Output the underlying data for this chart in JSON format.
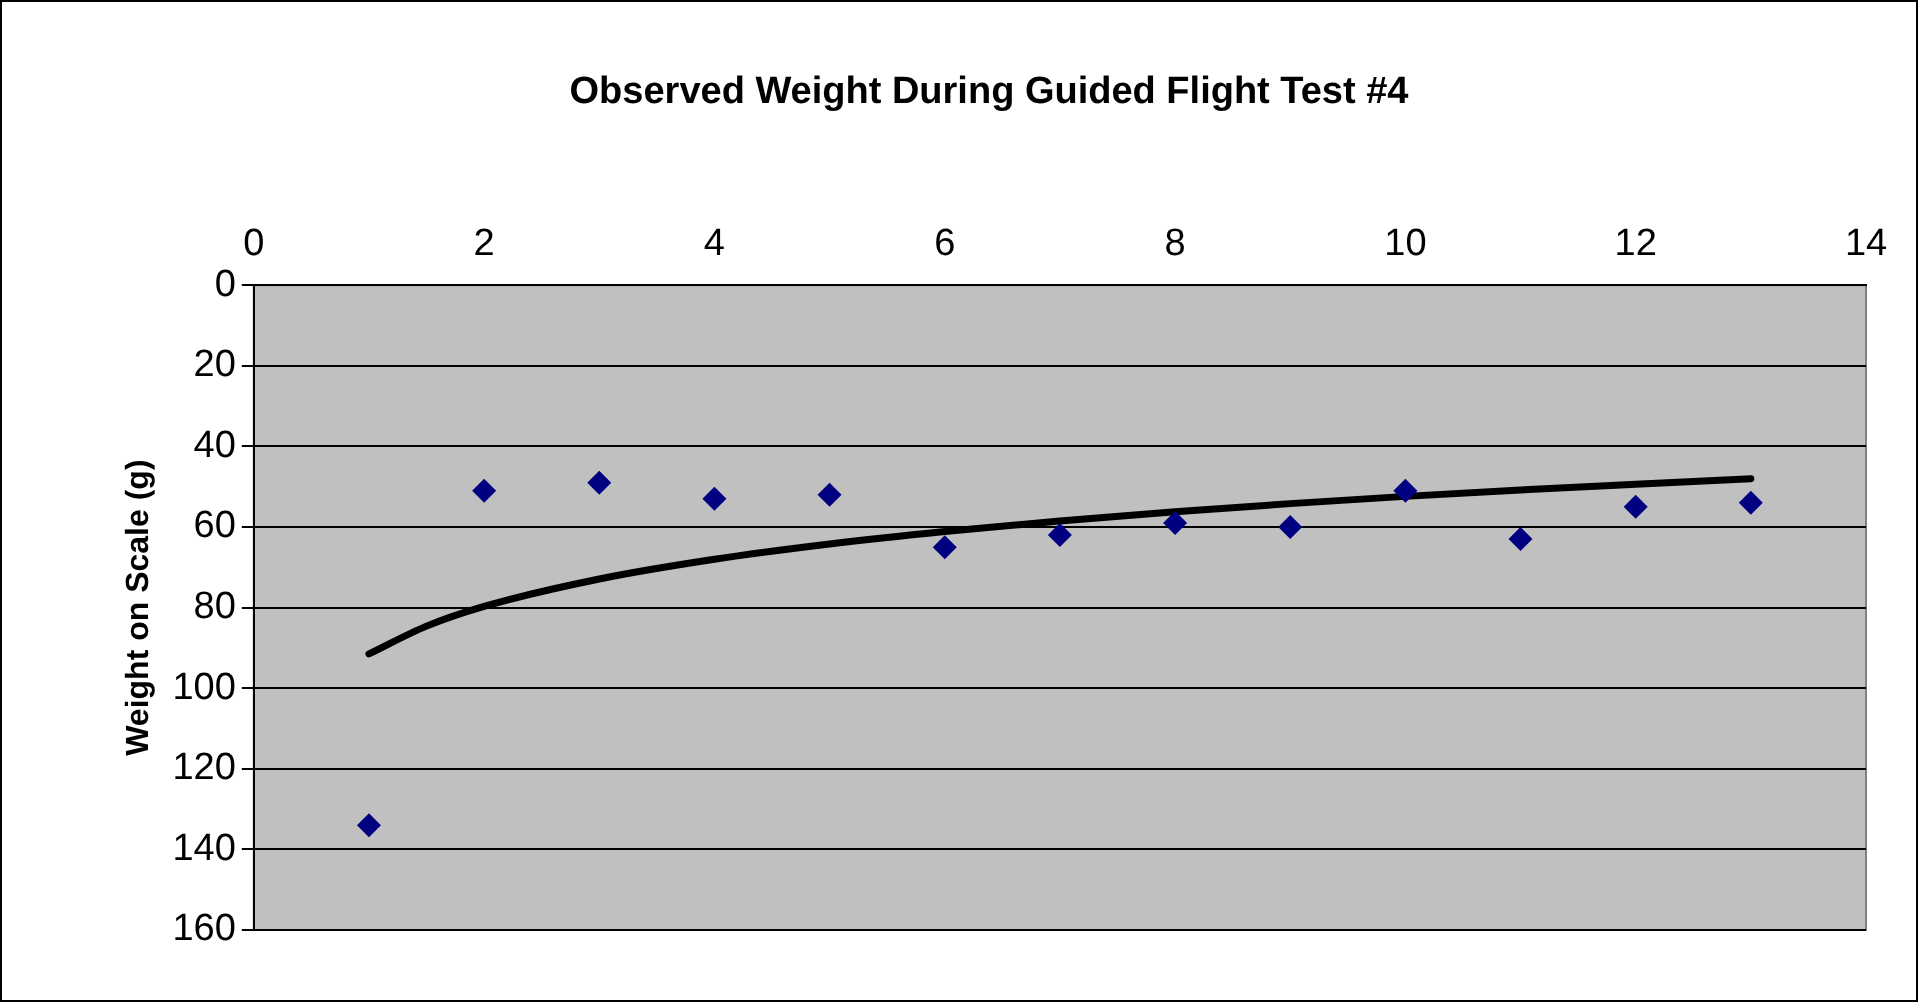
{
  "chart_data": {
    "type": "scatter",
    "title": "Observed Weight During Guided Flight Test #4",
    "ylabel": "Weight on Scale (g)",
    "x": [
      1,
      2,
      3,
      4,
      5,
      6,
      7,
      8,
      9,
      10,
      11,
      12,
      13
    ],
    "series": [
      {
        "type": "scatter",
        "color": "#000080",
        "marker": "diamond",
        "values": [
          134,
          51,
          49,
          53,
          52,
          65,
          62,
          59,
          60,
          51,
          63,
          55,
          54
        ]
      },
      {
        "type": "line",
        "color": "#000000",
        "marker": "none",
        "x": [
          1,
          1.5,
          2,
          3,
          4,
          5,
          6,
          7,
          8,
          9,
          10,
          11,
          12,
          13
        ],
        "values": [
          91.5,
          84.6,
          79.7,
          72.9,
          68,
          64.2,
          61.1,
          58.5,
          56.2,
          54.2,
          52.4,
          50.8,
          49.4,
          48
        ]
      }
    ],
    "xlim": [
      0,
      14
    ],
    "xticks": [
      0,
      2,
      4,
      6,
      8,
      10,
      12,
      14
    ],
    "ylim": [
      160,
      0
    ],
    "yticks": [
      0,
      20,
      40,
      60,
      80,
      100,
      120,
      140,
      160
    ],
    "grid": "y",
    "legend": false
  }
}
